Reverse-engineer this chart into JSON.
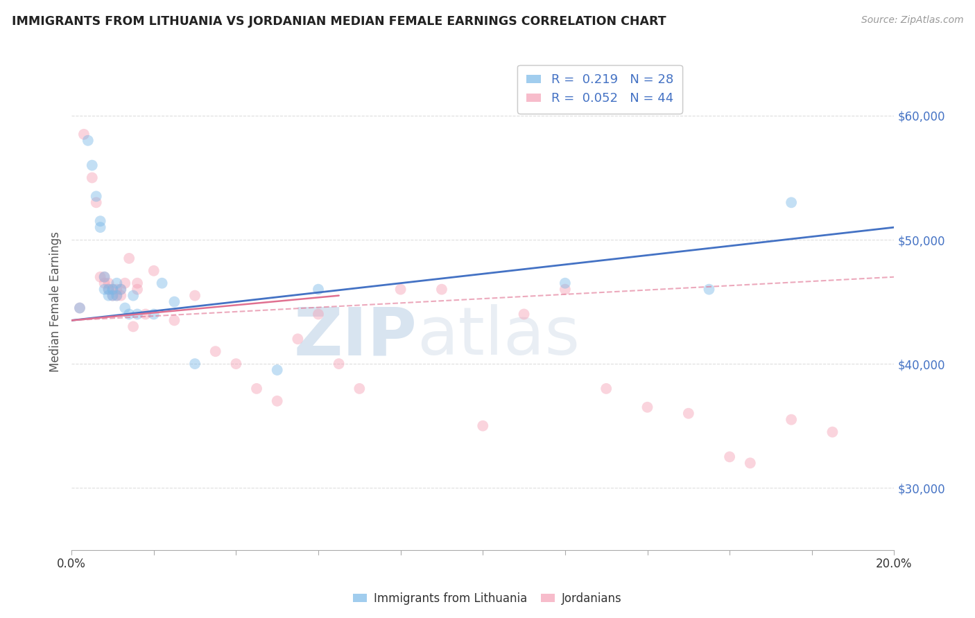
{
  "title": "IMMIGRANTS FROM LITHUANIA VS JORDANIAN MEDIAN FEMALE EARNINGS CORRELATION CHART",
  "source": "Source: ZipAtlas.com",
  "ylabel": "Median Female Earnings",
  "y_ticks": [
    30000,
    40000,
    50000,
    60000
  ],
  "y_tick_labels": [
    "$30,000",
    "$40,000",
    "$50,000",
    "$60,000"
  ],
  "xlim": [
    0.0,
    0.2
  ],
  "ylim": [
    25000,
    65000
  ],
  "legend_entries": [
    {
      "label": "R =  0.219   N = 28",
      "color": "#a8c4e0"
    },
    {
      "label": "R =  0.052   N = 44",
      "color": "#f0a0b0"
    }
  ],
  "legend_bottom": [
    {
      "label": "Immigrants from Lithuania",
      "color": "#a8c4e0"
    },
    {
      "label": "Jordanians",
      "color": "#f0a0b0"
    }
  ],
  "blue_scatter_x": [
    0.002,
    0.004,
    0.005,
    0.006,
    0.007,
    0.007,
    0.008,
    0.008,
    0.009,
    0.009,
    0.01,
    0.01,
    0.011,
    0.011,
    0.012,
    0.013,
    0.014,
    0.015,
    0.016,
    0.02,
    0.022,
    0.025,
    0.03,
    0.05,
    0.06,
    0.12,
    0.155,
    0.175
  ],
  "blue_scatter_y": [
    44500,
    58000,
    56000,
    53500,
    51500,
    51000,
    47000,
    46000,
    46000,
    45500,
    46000,
    45500,
    45500,
    46500,
    46000,
    44500,
    44000,
    45500,
    44000,
    44000,
    46500,
    45000,
    40000,
    39500,
    46000,
    46500,
    46000,
    53000
  ],
  "pink_scatter_x": [
    0.002,
    0.003,
    0.005,
    0.006,
    0.007,
    0.008,
    0.008,
    0.009,
    0.009,
    0.01,
    0.01,
    0.011,
    0.011,
    0.012,
    0.012,
    0.013,
    0.014,
    0.015,
    0.016,
    0.016,
    0.018,
    0.02,
    0.025,
    0.03,
    0.035,
    0.04,
    0.045,
    0.05,
    0.055,
    0.06,
    0.065,
    0.07,
    0.08,
    0.09,
    0.1,
    0.11,
    0.12,
    0.13,
    0.14,
    0.15,
    0.16,
    0.165,
    0.175,
    0.185
  ],
  "pink_scatter_y": [
    44500,
    58500,
    55000,
    53000,
    47000,
    46500,
    47000,
    46000,
    46500,
    46000,
    45500,
    45500,
    46000,
    45500,
    46000,
    46500,
    48500,
    43000,
    46000,
    46500,
    44000,
    47500,
    43500,
    45500,
    41000,
    40000,
    38000,
    37000,
    42000,
    44000,
    40000,
    38000,
    46000,
    46000,
    35000,
    44000,
    46000,
    38000,
    36500,
    36000,
    32500,
    32000,
    35500,
    34500
  ],
  "blue_line_x": [
    0.0,
    0.2
  ],
  "blue_line_y0": 43500,
  "blue_line_y1": 51000,
  "pink_solid_line_x": [
    0.0,
    0.065
  ],
  "pink_solid_line_y0": 43500,
  "pink_solid_line_y1": 45500,
  "pink_dash_line_x": [
    0.0,
    0.2
  ],
  "pink_dash_line_y0": 43500,
  "pink_dash_line_y1": 47000,
  "background_color": "#ffffff",
  "scatter_alpha": 0.45,
  "scatter_size": 130,
  "grid_color": "#dddddd",
  "blue_color": "#7ab8e8",
  "pink_color": "#f4a0b5",
  "blue_line_color": "#4472c4",
  "pink_line_color": "#e07090",
  "watermark_zip": "ZIP",
  "watermark_atlas": "atlas",
  "watermark_color": "#d8e4f0",
  "watermark_fontsize": 70
}
